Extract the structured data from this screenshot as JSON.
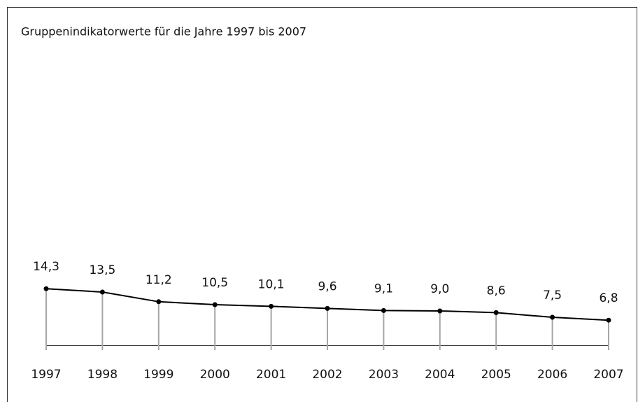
{
  "chart_data": {
    "type": "line",
    "title": "Gruppenindikatorwerte für die Jahre 1997 bis 2007",
    "categories": [
      "1997",
      "1998",
      "1999",
      "2000",
      "2001",
      "2002",
      "2003",
      "2004",
      "2005",
      "2006",
      "2007"
    ],
    "values": [
      14.3,
      13.5,
      11.2,
      10.5,
      10.1,
      9.6,
      9.1,
      9.0,
      8.6,
      7.5,
      6.8
    ],
    "value_labels": [
      "14,3",
      "13,5",
      "11,2",
      "10,5",
      "10,1",
      "9,6",
      "9,1",
      "9,0",
      "8,6",
      "7,5",
      "6,8"
    ],
    "color": "#000000",
    "drop_line_color": "#a6a6a6",
    "ylim": [
      0,
      70
    ]
  }
}
